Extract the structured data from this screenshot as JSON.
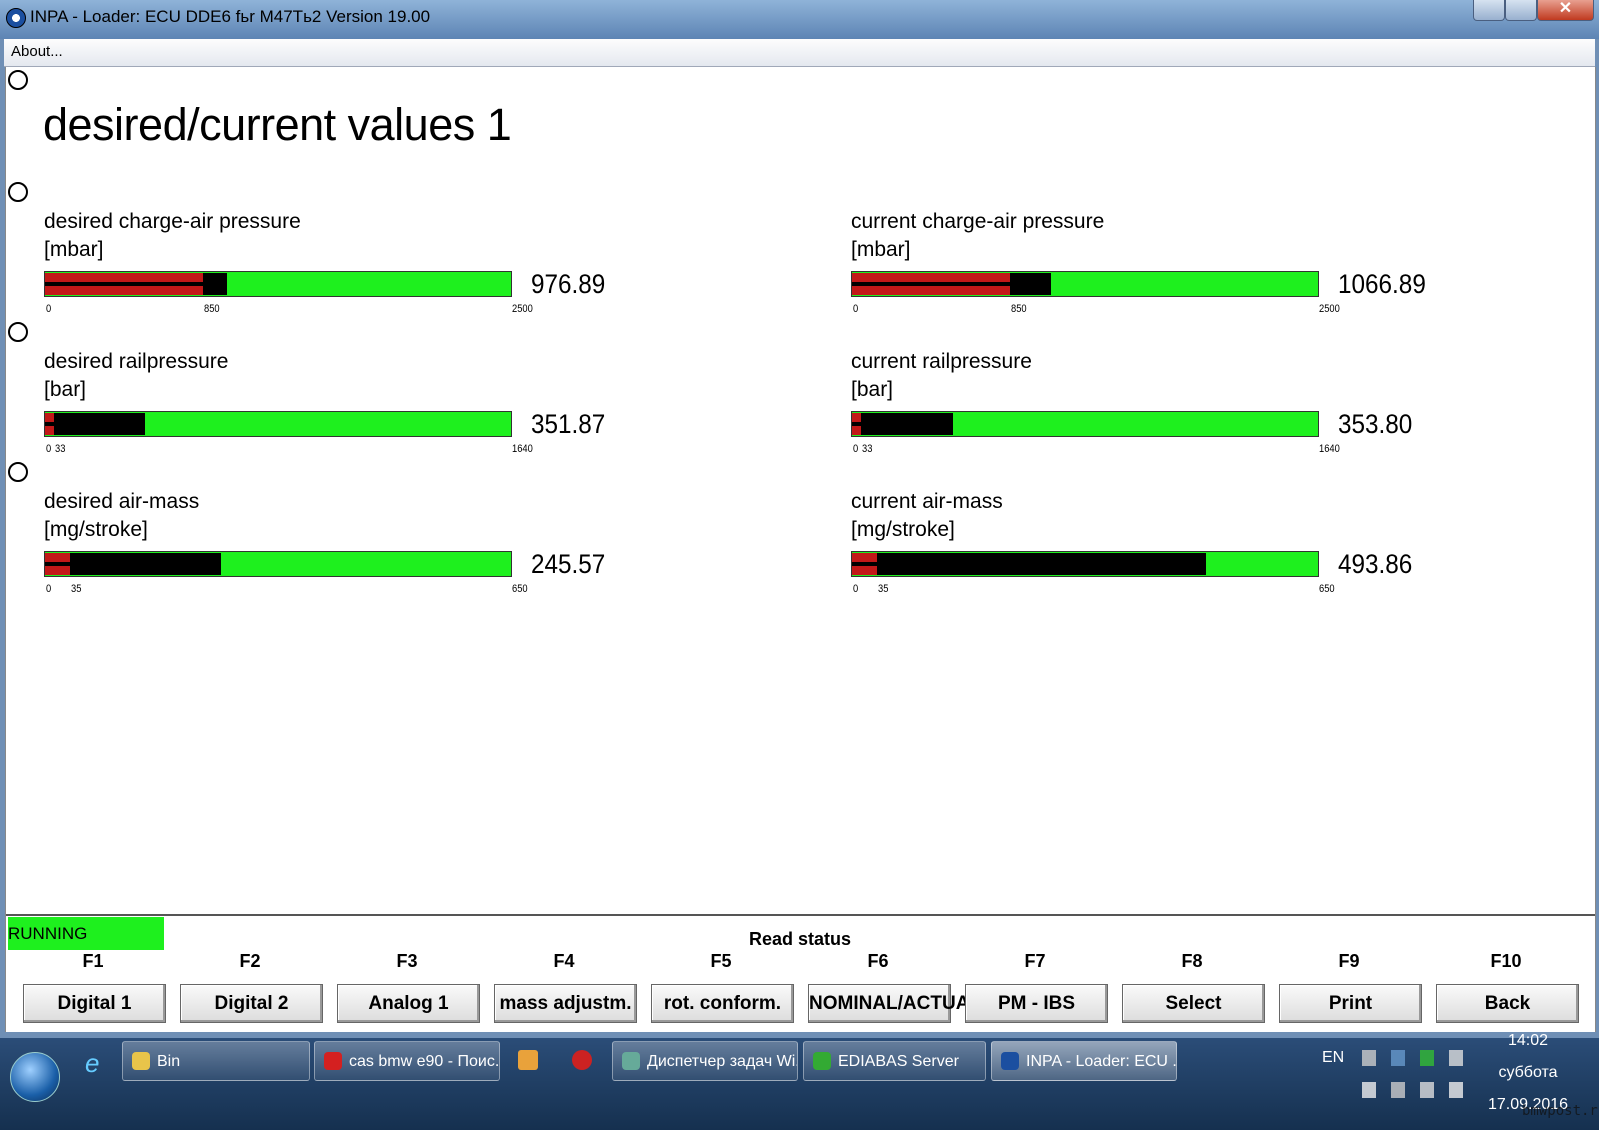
{
  "window": {
    "title": "INPA - Loader:  ECU DDE6 fьr M47Tь2 Version 19.00",
    "menu": [
      "About..."
    ]
  },
  "screen_title": "desired/current values 1",
  "gauges": [
    {
      "label": "desired charge-air pressure",
      "unit": "[mbar]",
      "scale": [
        0,
        850,
        2500
      ],
      "value": 976.89
    },
    {
      "label": "current charge-air pressure",
      "unit": "[mbar]",
      "scale": [
        0,
        850,
        2500
      ],
      "value": 1066.89
    },
    {
      "label": "desired railpressure",
      "unit": "[bar]",
      "scale": [
        0,
        33,
        1640
      ],
      "value": 351.87
    },
    {
      "label": "current railpressure",
      "unit": "[bar]",
      "scale": [
        0,
        33,
        1640
      ],
      "value": 353.8,
      "value_label": "353.80"
    },
    {
      "label": "desired air-mass",
      "unit": "[mg/stroke]",
      "scale": [
        0,
        35,
        650
      ],
      "value": 245.57
    },
    {
      "label": "current air-mass",
      "unit": "[mg/stroke]",
      "scale": [
        0,
        35,
        650
      ],
      "value": 493.86
    }
  ],
  "status": {
    "state": "RUNNING",
    "message": "Read status"
  },
  "function_keys": [
    {
      "key": "F1",
      "label": "Digital 1"
    },
    {
      "key": "F2",
      "label": "Digital 2"
    },
    {
      "key": "F3",
      "label": "Analog 1"
    },
    {
      "key": "F4",
      "label": "mass adjustm."
    },
    {
      "key": "F5",
      "label": "rot. conform."
    },
    {
      "key": "F6",
      "label": "NOMINAL/ACTUAL"
    },
    {
      "key": "F7",
      "label": "PM - IBS"
    },
    {
      "key": "F8",
      "label": "Select"
    },
    {
      "key": "F9",
      "label": "Print"
    },
    {
      "key": "F10",
      "label": "Back"
    }
  ],
  "taskbar": {
    "items": [
      "Bin",
      "cas bmw e90 - Поис...",
      "Диспетчер задач Wi...",
      "EDIABAS Server",
      "INPA - Loader:  ECU ..."
    ],
    "language": "EN",
    "time": "14:02",
    "day": "суббота",
    "date": "17.09.2016"
  },
  "watermark": "bmwpost.ru"
}
